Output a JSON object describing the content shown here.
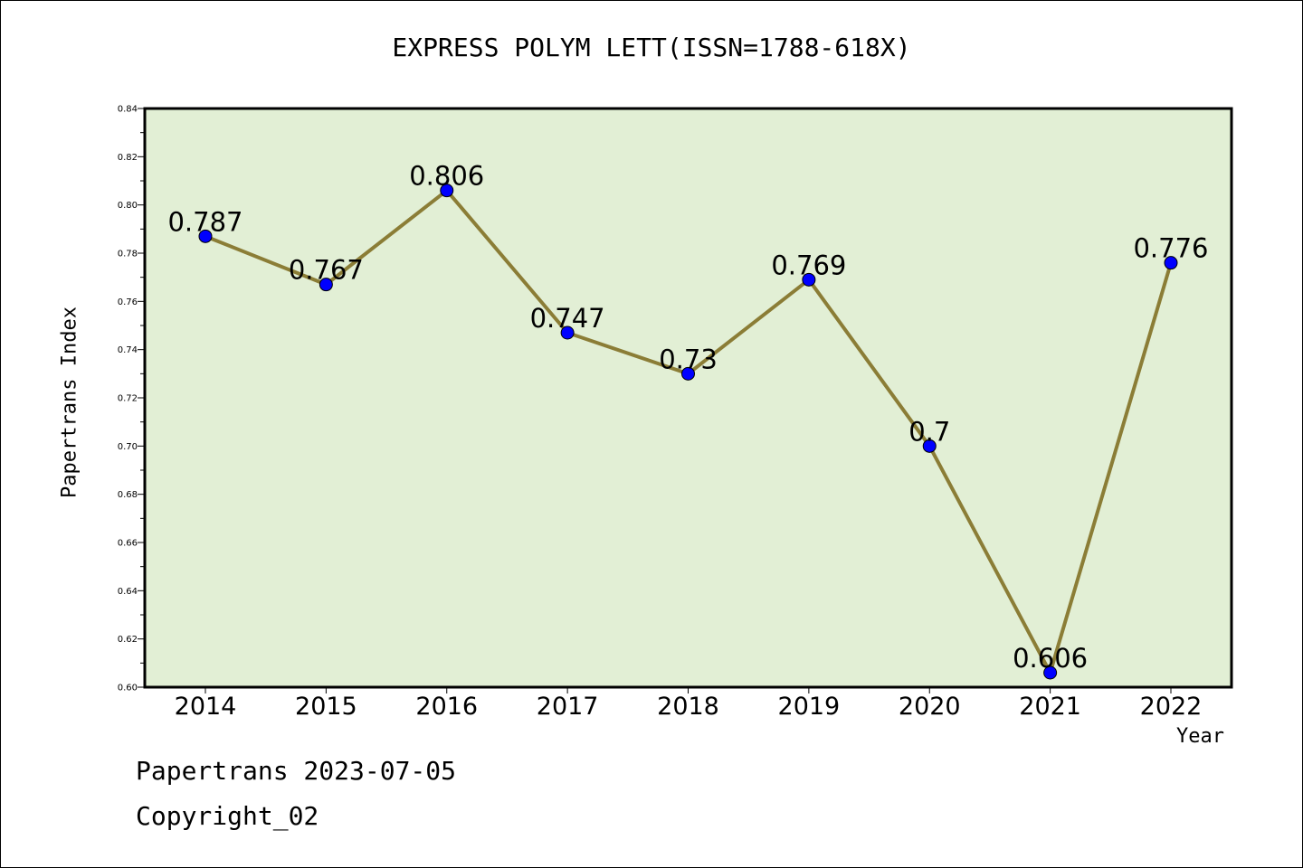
{
  "chart_data": {
    "type": "line",
    "title": "EXPRESS POLYM LETT(ISSN=1788-618X)",
    "xlabel": "Year",
    "ylabel": "Papertrans Index",
    "categories": [
      "2014",
      "2015",
      "2016",
      "2017",
      "2018",
      "2019",
      "2020",
      "2021",
      "2022"
    ],
    "series": [
      {
        "values": [
          0.787,
          0.767,
          0.806,
          0.747,
          0.73,
          0.769,
          0.7,
          0.606,
          0.776
        ],
        "data_labels": [
          "0.787",
          "0.767",
          "0.806",
          "0.747",
          "0.73",
          "0.769",
          "0.7",
          "0.606",
          "0.776"
        ]
      }
    ],
    "ylim": [
      0.6,
      0.84
    ],
    "yticks": [
      "0.60",
      "0.62",
      "0.64",
      "0.66",
      "0.68",
      "0.70",
      "0.72",
      "0.74",
      "0.76",
      "0.78",
      "0.80",
      "0.82",
      "0.84"
    ],
    "grid": false,
    "legend": "none",
    "colors": {
      "plot_background": "#e2efd5",
      "line": "#8b7d36",
      "marker": "#0000ff"
    }
  },
  "footer": {
    "line1": "Papertrans 2023-07-05",
    "line2": "Copyright_02"
  }
}
